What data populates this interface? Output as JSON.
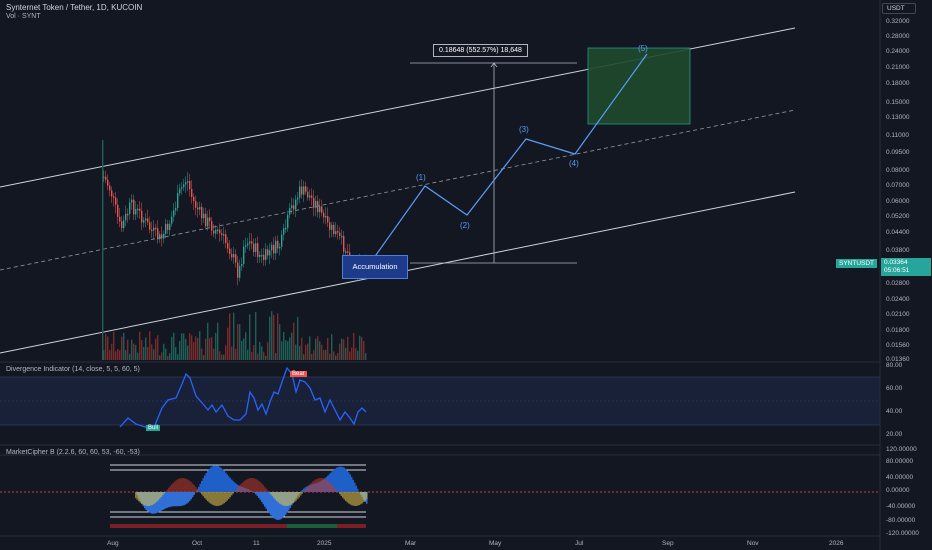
{
  "header": {
    "title": "Synternet Token / Tether, 1D, KUCOIN",
    "subtitle": "Vol · SYNT",
    "currency": "USDT"
  },
  "price_axis": [
    "0.32000",
    "0.28000",
    "0.24000",
    "0.21000",
    "0.18000",
    "0.15000",
    "0.13000",
    "0.11000",
    "0.09500",
    "0.08000",
    "0.07000",
    "0.06000",
    "0.05200",
    "0.04400",
    "0.03800",
    "0.02800",
    "0.02400",
    "0.02100",
    "0.01800",
    "0.01560",
    "0.01360"
  ],
  "price_tag": {
    "symbol": "SYNTUSDT",
    "price": "0.03364",
    "countdown": "05:06:51"
  },
  "time_axis": [
    "Aug",
    "Oct",
    "11",
    "2025",
    "Mar",
    "May",
    "Jul",
    "Sep",
    "Nov",
    "2026"
  ],
  "annotations": {
    "measure": "0.18648 (552.57%) 18,648",
    "accumulation": "Accumulation",
    "waves": [
      "(1)",
      "(2)",
      "(3)",
      "(4)",
      "(5)"
    ]
  },
  "divergence": {
    "title": "Divergence Indicator (14, close, 5, 5, 60, 5)",
    "axis": [
      "80.00",
      "60.00",
      "40.00",
      "20.00"
    ],
    "bull_label": "Bull",
    "bear_label": "Bear"
  },
  "marketcipher": {
    "title": "MarketCipher B (2.2.6, 60, 60, 53, -60, -53)",
    "axis": [
      "120.00000",
      "80.00000",
      "40.00000",
      "0.00000",
      "-40.00000",
      "-80.00000",
      "-120.00000"
    ]
  },
  "colors": {
    "up": "#26a69a",
    "down": "#ef5350",
    "accent": "#2962ff",
    "background": "#131722"
  }
}
